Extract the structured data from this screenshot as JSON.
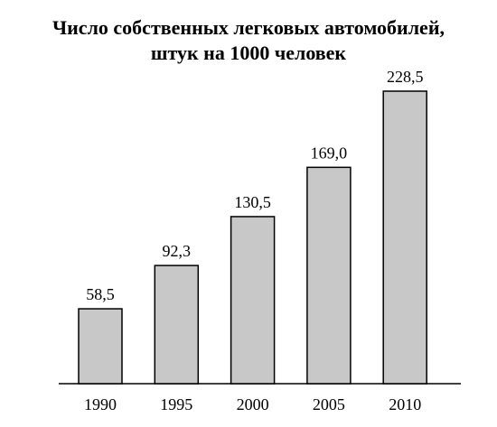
{
  "chart_data": {
    "type": "bar",
    "title": [
      "Число собственных легковых автомобилей,",
      "штук на 1000 человек"
    ],
    "categories": [
      "1990",
      "1995",
      "2000",
      "2005",
      "2010"
    ],
    "values": [
      58.5,
      92.3,
      130.5,
      169.0,
      228.5
    ],
    "value_labels": [
      "58,5",
      "92,3",
      "130,5",
      "169,0",
      "228,5"
    ],
    "color": "#c8c8c8"
  }
}
